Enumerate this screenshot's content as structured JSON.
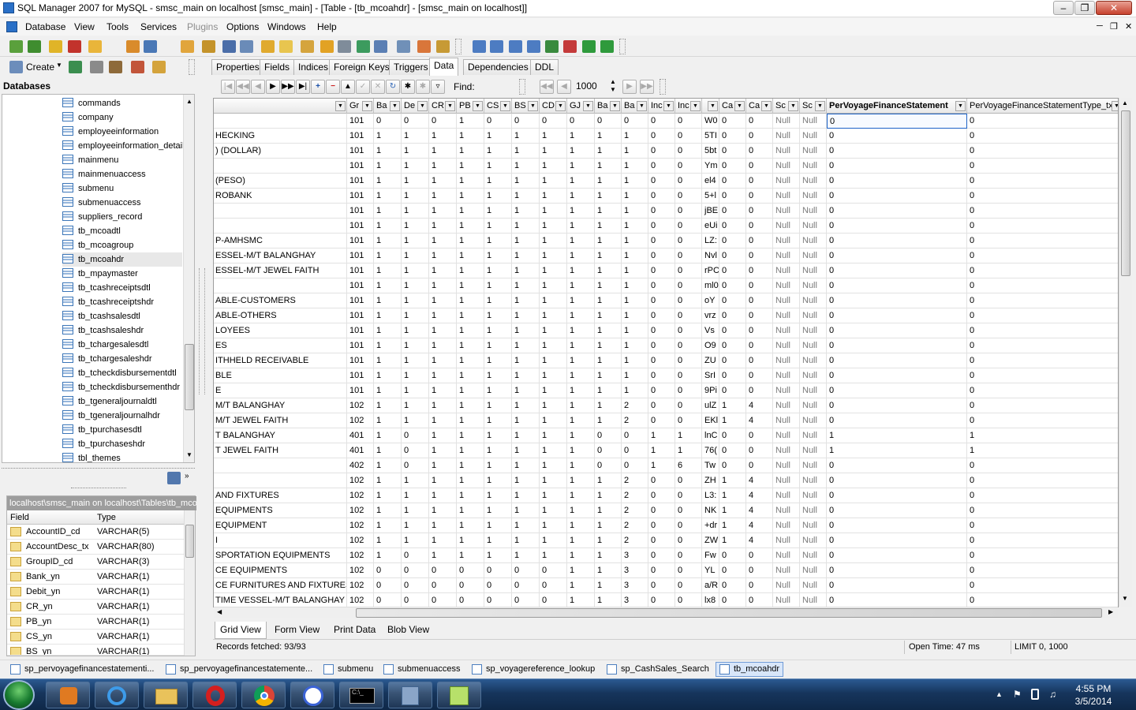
{
  "window": {
    "title": "SQL Manager 2007 for MySQL - smsc_main on localhost [smsc_main] - [Table - [tb_mcoahdr] - [smsc_main on localhost]]"
  },
  "menu": [
    "Database",
    "View",
    "Tools",
    "Services",
    "Plugins",
    "Options",
    "Windows",
    "Help"
  ],
  "left_toolbar": {
    "create_label": "Create"
  },
  "db_panel": {
    "title": "Databases",
    "items": [
      "commands",
      "company",
      "employeeinformation",
      "employeeinformation_detail",
      "mainmenu",
      "mainmenuaccess",
      "submenu",
      "submenuaccess",
      "suppliers_record",
      "tb_mcoadtl",
      "tb_mcoagroup",
      "tb_mcoahdr",
      "tb_mpaymaster",
      "tb_tcashreceiptsdtl",
      "tb_tcashreceiptshdr",
      "tb_tcashsalesdtl",
      "tb_tcashsaleshdr",
      "tb_tchargesalesdtl",
      "tb_tchargesaleshdr",
      "tb_tcheckdisbursementdtl",
      "tb_tcheckdisbursementhdr",
      "tb_tgeneraljournaldtl",
      "tb_tgeneraljournalhdr",
      "tb_tpurchasesdtl",
      "tb_tpurchaseshdr",
      "tbl_themes"
    ],
    "selected": "tb_mcoahdr"
  },
  "fields_panel": {
    "path": "localhost\\smsc_main on localhost\\Tables\\tb_mcoahdr",
    "col_field": "Field",
    "col_type": "Type",
    "rows": [
      [
        "AccountID_cd",
        "VARCHAR(5)"
      ],
      [
        "AccountDesc_tx",
        "VARCHAR(80)"
      ],
      [
        "GroupID_cd",
        "VARCHAR(3)"
      ],
      [
        "Bank_yn",
        "VARCHAR(1)"
      ],
      [
        "Debit_yn",
        "VARCHAR(1)"
      ],
      [
        "CR_yn",
        "VARCHAR(1)"
      ],
      [
        "PB_yn",
        "VARCHAR(1)"
      ],
      [
        "CS_yn",
        "VARCHAR(1)"
      ],
      [
        "BS_yn",
        "VARCHAR(1)"
      ]
    ]
  },
  "tabs": [
    "Properties",
    "Fields",
    "Indices",
    "Foreign Keys",
    "Triggers",
    "Data",
    "Dependencies",
    "DDL"
  ],
  "active_tab": "Data",
  "navbar": {
    "find_label": "Find:",
    "limit": "1000"
  },
  "grid": {
    "headers": [
      "",
      "Gr",
      "Ba",
      "De",
      "CR",
      "PB",
      "CS",
      "BS",
      "CD",
      "GJ",
      "Ba",
      "Ba",
      "Inc",
      "Inc",
      "",
      "Ca",
      "Ca",
      "Sc",
      "Sc",
      "PerVoyageFinanceStatement",
      "PerVoyageFinanceStatementType_tx"
    ],
    "rows": [
      [
        "",
        "101",
        "0",
        "0",
        "0",
        "1",
        "0",
        "0",
        "0",
        "0",
        "0",
        "0",
        "0",
        "0",
        "W0",
        "0",
        "0",
        "Null",
        "Null",
        "0",
        "0"
      ],
      [
        "HECKING",
        "101",
        "1",
        "1",
        "1",
        "1",
        "1",
        "1",
        "1",
        "1",
        "1",
        "1",
        "0",
        "0",
        "5TI",
        "0",
        "0",
        "Null",
        "Null",
        "0",
        "0"
      ],
      [
        ") (DOLLAR)",
        "101",
        "1",
        "1",
        "1",
        "1",
        "1",
        "1",
        "1",
        "1",
        "1",
        "1",
        "0",
        "0",
        "5bt",
        "0",
        "0",
        "Null",
        "Null",
        "0",
        "0"
      ],
      [
        "",
        "101",
        "1",
        "1",
        "1",
        "1",
        "1",
        "1",
        "1",
        "1",
        "1",
        "1",
        "0",
        "0",
        "Ym",
        "0",
        "0",
        "Null",
        "Null",
        "0",
        "0"
      ],
      [
        " (PESO)",
        "101",
        "1",
        "1",
        "1",
        "1",
        "1",
        "1",
        "1",
        "1",
        "1",
        "1",
        "0",
        "0",
        "el4",
        "0",
        "0",
        "Null",
        "Null",
        "0",
        "0"
      ],
      [
        "ROBANK",
        "101",
        "1",
        "1",
        "1",
        "1",
        "1",
        "1",
        "1",
        "1",
        "1",
        "1",
        "0",
        "0",
        "5+l",
        "0",
        "0",
        "Null",
        "Null",
        "0",
        "0"
      ],
      [
        "",
        "101",
        "1",
        "1",
        "1",
        "1",
        "1",
        "1",
        "1",
        "1",
        "1",
        "1",
        "0",
        "0",
        "jBE",
        "0",
        "0",
        "Null",
        "Null",
        "0",
        "0"
      ],
      [
        "",
        "101",
        "1",
        "1",
        "1",
        "1",
        "1",
        "1",
        "1",
        "1",
        "1",
        "1",
        "0",
        "0",
        "eUi",
        "0",
        "0",
        "Null",
        "Null",
        "0",
        "0"
      ],
      [
        "P-AMHSMC",
        "101",
        "1",
        "1",
        "1",
        "1",
        "1",
        "1",
        "1",
        "1",
        "1",
        "1",
        "0",
        "0",
        "LZ:",
        "0",
        "0",
        "Null",
        "Null",
        "0",
        "0"
      ],
      [
        "ESSEL-M/T BALANGHAY",
        "101",
        "1",
        "1",
        "1",
        "1",
        "1",
        "1",
        "1",
        "1",
        "1",
        "1",
        "0",
        "0",
        "Nvl",
        "0",
        "0",
        "Null",
        "Null",
        "0",
        "0"
      ],
      [
        "ESSEL-M/T JEWEL FAITH",
        "101",
        "1",
        "1",
        "1",
        "1",
        "1",
        "1",
        "1",
        "1",
        "1",
        "1",
        "0",
        "0",
        "rPC",
        "0",
        "0",
        "Null",
        "Null",
        "0",
        "0"
      ],
      [
        "",
        "101",
        "1",
        "1",
        "1",
        "1",
        "1",
        "1",
        "1",
        "1",
        "1",
        "1",
        "0",
        "0",
        "ml0",
        "0",
        "0",
        "Null",
        "Null",
        "0",
        "0"
      ],
      [
        "ABLE-CUSTOMERS",
        "101",
        "1",
        "1",
        "1",
        "1",
        "1",
        "1",
        "1",
        "1",
        "1",
        "1",
        "0",
        "0",
        "oY",
        "0",
        "0",
        "Null",
        "Null",
        "0",
        "0"
      ],
      [
        "ABLE-OTHERS",
        "101",
        "1",
        "1",
        "1",
        "1",
        "1",
        "1",
        "1",
        "1",
        "1",
        "1",
        "0",
        "0",
        "vrz",
        "0",
        "0",
        "Null",
        "Null",
        "0",
        "0"
      ],
      [
        "LOYEES",
        "101",
        "1",
        "1",
        "1",
        "1",
        "1",
        "1",
        "1",
        "1",
        "1",
        "1",
        "0",
        "0",
        "Vs",
        "0",
        "0",
        "Null",
        "Null",
        "0",
        "0"
      ],
      [
        "ES",
        "101",
        "1",
        "1",
        "1",
        "1",
        "1",
        "1",
        "1",
        "1",
        "1",
        "1",
        "0",
        "0",
        "O9",
        "0",
        "0",
        "Null",
        "Null",
        "0",
        "0"
      ],
      [
        "ITHHELD RECEIVABLE",
        "101",
        "1",
        "1",
        "1",
        "1",
        "1",
        "1",
        "1",
        "1",
        "1",
        "1",
        "0",
        "0",
        "ZU",
        "0",
        "0",
        "Null",
        "Null",
        "0",
        "0"
      ],
      [
        "BLE",
        "101",
        "1",
        "1",
        "1",
        "1",
        "1",
        "1",
        "1",
        "1",
        "1",
        "1",
        "0",
        "0",
        "SrI",
        "0",
        "0",
        "Null",
        "Null",
        "0",
        "0"
      ],
      [
        "E",
        "101",
        "1",
        "1",
        "1",
        "1",
        "1",
        "1",
        "1",
        "1",
        "1",
        "1",
        "0",
        "0",
        "9Pi",
        "0",
        "0",
        "Null",
        "Null",
        "0",
        "0"
      ],
      [
        "M/T BALANGHAY",
        "102",
        "1",
        "1",
        "1",
        "1",
        "1",
        "1",
        "1",
        "1",
        "1",
        "2",
        "0",
        "0",
        "ulZ",
        "1",
        "4",
        "Null",
        "Null",
        "0",
        "0"
      ],
      [
        "M/T JEWEL FAITH",
        "102",
        "1",
        "1",
        "1",
        "1",
        "1",
        "1",
        "1",
        "1",
        "1",
        "2",
        "0",
        "0",
        "EKl",
        "1",
        "4",
        "Null",
        "Null",
        "0",
        "0"
      ],
      [
        "T BALANGHAY",
        "401",
        "1",
        "0",
        "1",
        "1",
        "1",
        "1",
        "1",
        "1",
        "0",
        "0",
        "1",
        "1",
        "lnC",
        "0",
        "0",
        "Null",
        "Null",
        "1",
        "1"
      ],
      [
        "T JEWEL FAITH",
        "401",
        "1",
        "0",
        "1",
        "1",
        "1",
        "1",
        "1",
        "1",
        "0",
        "0",
        "1",
        "1",
        "76(",
        "0",
        "0",
        "Null",
        "Null",
        "1",
        "1"
      ],
      [
        "",
        "402",
        "1",
        "0",
        "1",
        "1",
        "1",
        "1",
        "1",
        "1",
        "0",
        "0",
        "1",
        "6",
        "Tw",
        "0",
        "0",
        "Null",
        "Null",
        "0",
        "0"
      ],
      [
        "",
        "102",
        "1",
        "1",
        "1",
        "1",
        "1",
        "1",
        "1",
        "1",
        "1",
        "2",
        "0",
        "0",
        "ZH",
        "1",
        "4",
        "Null",
        "Null",
        "0",
        "0"
      ],
      [
        " AND FIXTURES",
        "102",
        "1",
        "1",
        "1",
        "1",
        "1",
        "1",
        "1",
        "1",
        "1",
        "2",
        "0",
        "0",
        "L3:",
        "1",
        "4",
        "Null",
        "Null",
        "0",
        "0"
      ],
      [
        "EQUIPMENTS",
        "102",
        "1",
        "1",
        "1",
        "1",
        "1",
        "1",
        "1",
        "1",
        "1",
        "2",
        "0",
        "0",
        "NK",
        "1",
        "4",
        "Null",
        "Null",
        "0",
        "0"
      ],
      [
        "EQUIPMENT",
        "102",
        "1",
        "1",
        "1",
        "1",
        "1",
        "1",
        "1",
        "1",
        "1",
        "2",
        "0",
        "0",
        "+dr",
        "1",
        "4",
        "Null",
        "Null",
        "0",
        "0"
      ],
      [
        "I",
        "102",
        "1",
        "1",
        "1",
        "1",
        "1",
        "1",
        "1",
        "1",
        "1",
        "2",
        "0",
        "0",
        "ZW",
        "1",
        "4",
        "Null",
        "Null",
        "0",
        "0"
      ],
      [
        "SPORTATION EQUIPMENTS",
        "102",
        "1",
        "0",
        "1",
        "1",
        "1",
        "1",
        "1",
        "1",
        "1",
        "3",
        "0",
        "0",
        "Fw",
        "0",
        "0",
        "Null",
        "Null",
        "0",
        "0"
      ],
      [
        "CE EQUIPMENTS",
        "102",
        "0",
        "0",
        "0",
        "0",
        "0",
        "0",
        "0",
        "1",
        "1",
        "3",
        "0",
        "0",
        "YL",
        "0",
        "0",
        "Null",
        "Null",
        "0",
        "0"
      ],
      [
        "CE FURNITURES AND FIXTURES",
        "102",
        "0",
        "0",
        "0",
        "0",
        "0",
        "0",
        "0",
        "1",
        "1",
        "3",
        "0",
        "0",
        "a/R",
        "0",
        "0",
        "Null",
        "Null",
        "0",
        "0"
      ],
      [
        "TIME VESSEL-M/T BALANGHAY",
        "102",
        "0",
        "0",
        "0",
        "0",
        "0",
        "0",
        "0",
        "1",
        "1",
        "3",
        "0",
        "0",
        "lx8",
        "0",
        "0",
        "Null",
        "Null",
        "0",
        "0"
      ]
    ]
  },
  "view_tabs": [
    "Grid View",
    "Form View",
    "Print Data",
    "Blob View"
  ],
  "status": {
    "records": "Records fetched: 93/93",
    "open_time": "Open Time: 47 ms",
    "limit": "LIMIT 0, 1000"
  },
  "doc_tabs": [
    "sp_pervoyagefinancestatementi...",
    "sp_pervoyagefinancestatemente...",
    "submenu",
    "submenuaccess",
    "sp_voyagereference_lookup",
    "sp_CashSales_Search",
    "tb_mcoahdr"
  ],
  "taskbar": {
    "time": "4:55 PM",
    "date": "3/5/2014"
  }
}
